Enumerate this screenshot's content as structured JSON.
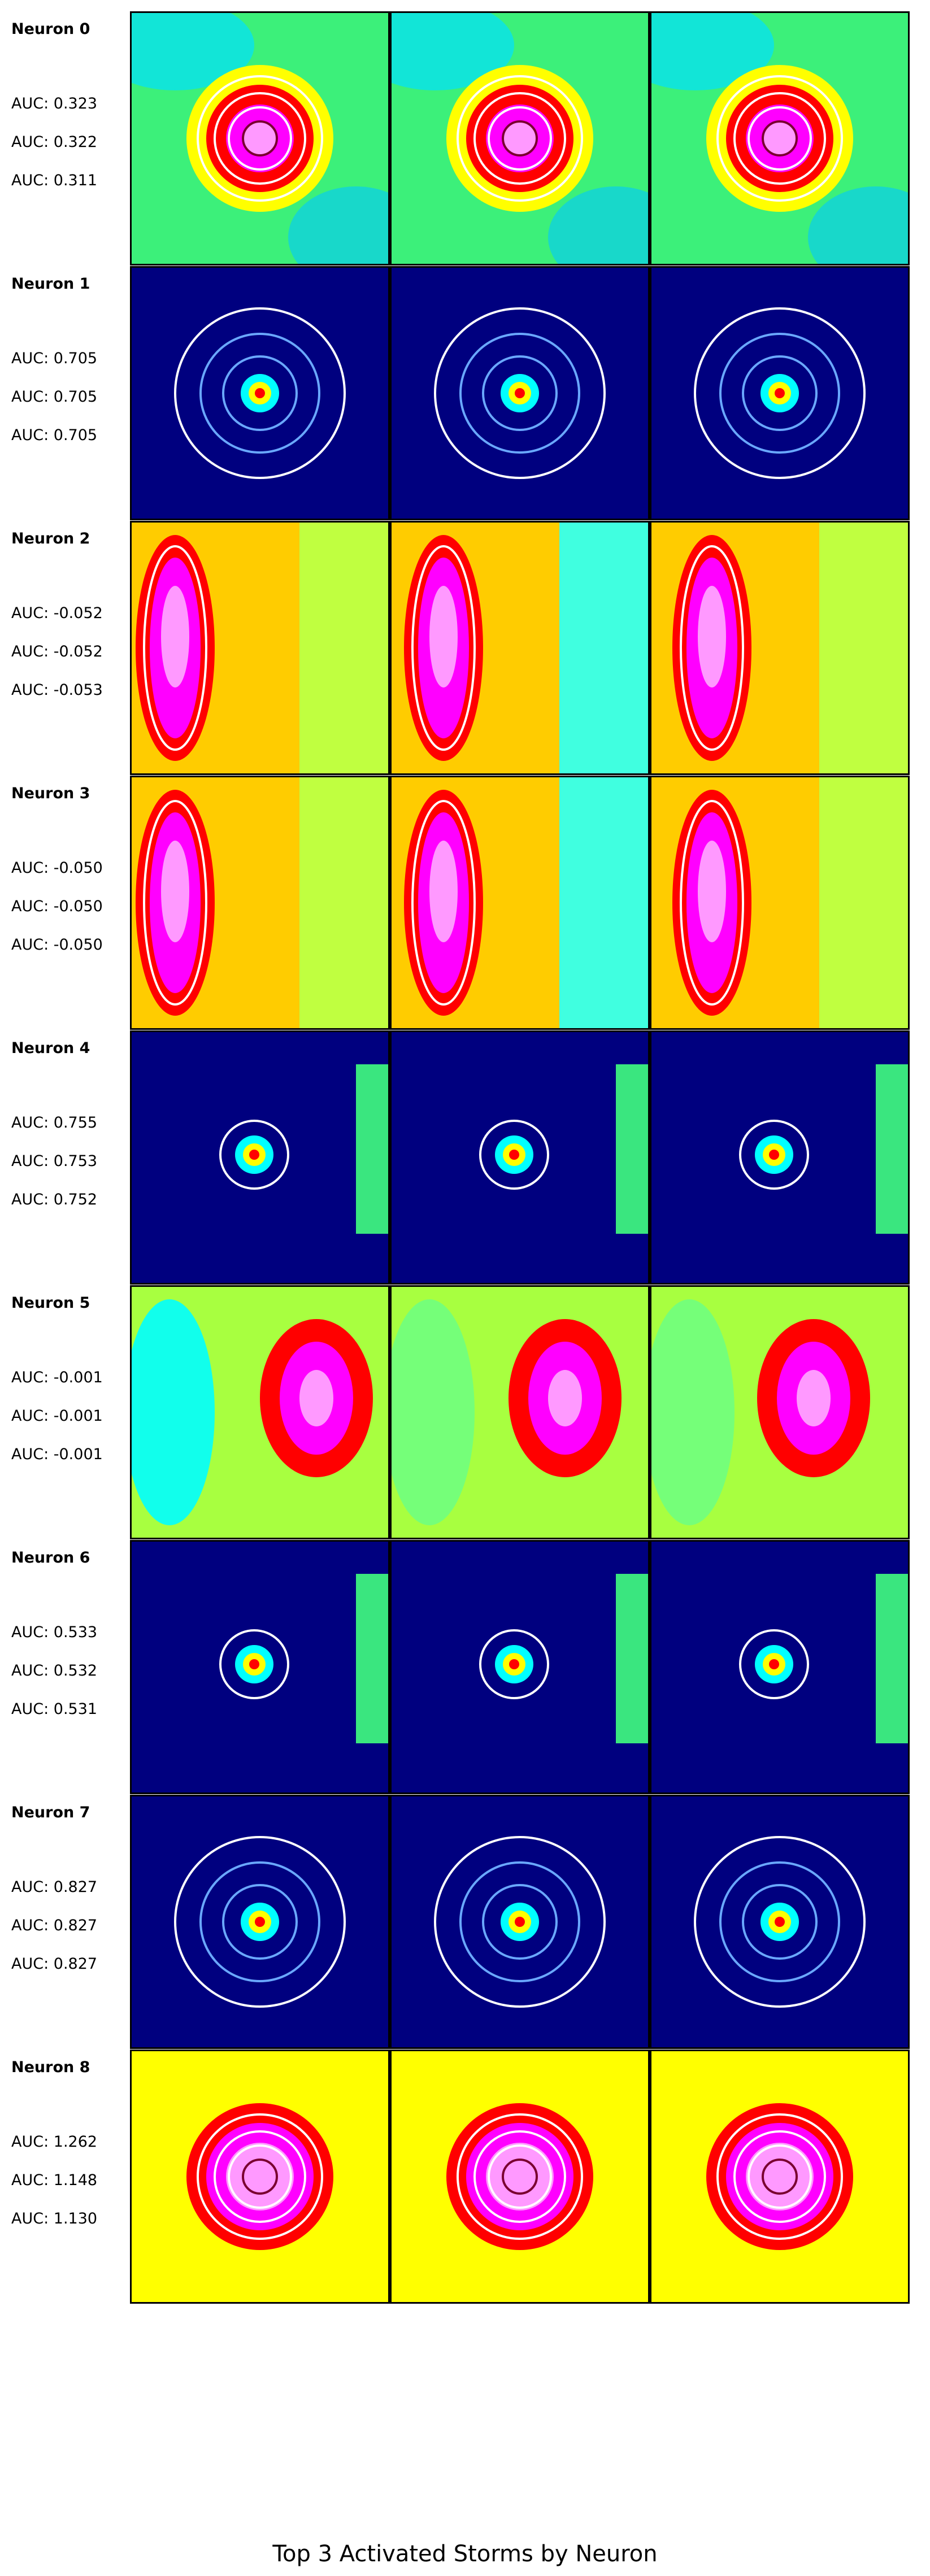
{
  "title": "Top 3 Activated Storms by Neuron",
  "neurons": [
    {
      "label": "Neuron 0",
      "aucs": [
        "AUC: 0.323",
        "AUC: 0.322",
        "AUC: 0.311"
      ],
      "style": "center-green"
    },
    {
      "label": "Neuron 1",
      "aucs": [
        "AUC: 0.705",
        "AUC: 0.705",
        "AUC: 0.705"
      ],
      "style": "dark-center"
    },
    {
      "label": "Neuron 2",
      "aucs": [
        "AUC: -0.052",
        "AUC: -0.052",
        "AUC: -0.053"
      ],
      "style": "left-band"
    },
    {
      "label": "Neuron 3",
      "aucs": [
        "AUC: -0.050",
        "AUC: -0.050",
        "AUC: -0.050"
      ],
      "style": "left-band"
    },
    {
      "label": "Neuron 4",
      "aucs": [
        "AUC: 0.755",
        "AUC: 0.753",
        "AUC: 0.752"
      ],
      "style": "dark-edge"
    },
    {
      "label": "Neuron 5",
      "aucs": [
        "AUC: -0.001",
        "AUC: -0.001",
        "AUC: -0.001"
      ],
      "style": "right-blob"
    },
    {
      "label": "Neuron 6",
      "aucs": [
        "AUC: 0.533",
        "AUC: 0.532",
        "AUC: 0.531"
      ],
      "style": "dark-edge"
    },
    {
      "label": "Neuron 7",
      "aucs": [
        "AUC: 0.827",
        "AUC: 0.827",
        "AUC: 0.827"
      ],
      "style": "dark-center"
    },
    {
      "label": "Neuron 8",
      "aucs": [
        "AUC: 1.262",
        "AUC: 1.148",
        "AUC: 1.130"
      ],
      "style": "center-warm"
    }
  ],
  "colors": {
    "background_dark": "#00007f",
    "contour": "#ffffff",
    "text": "#000000"
  }
}
